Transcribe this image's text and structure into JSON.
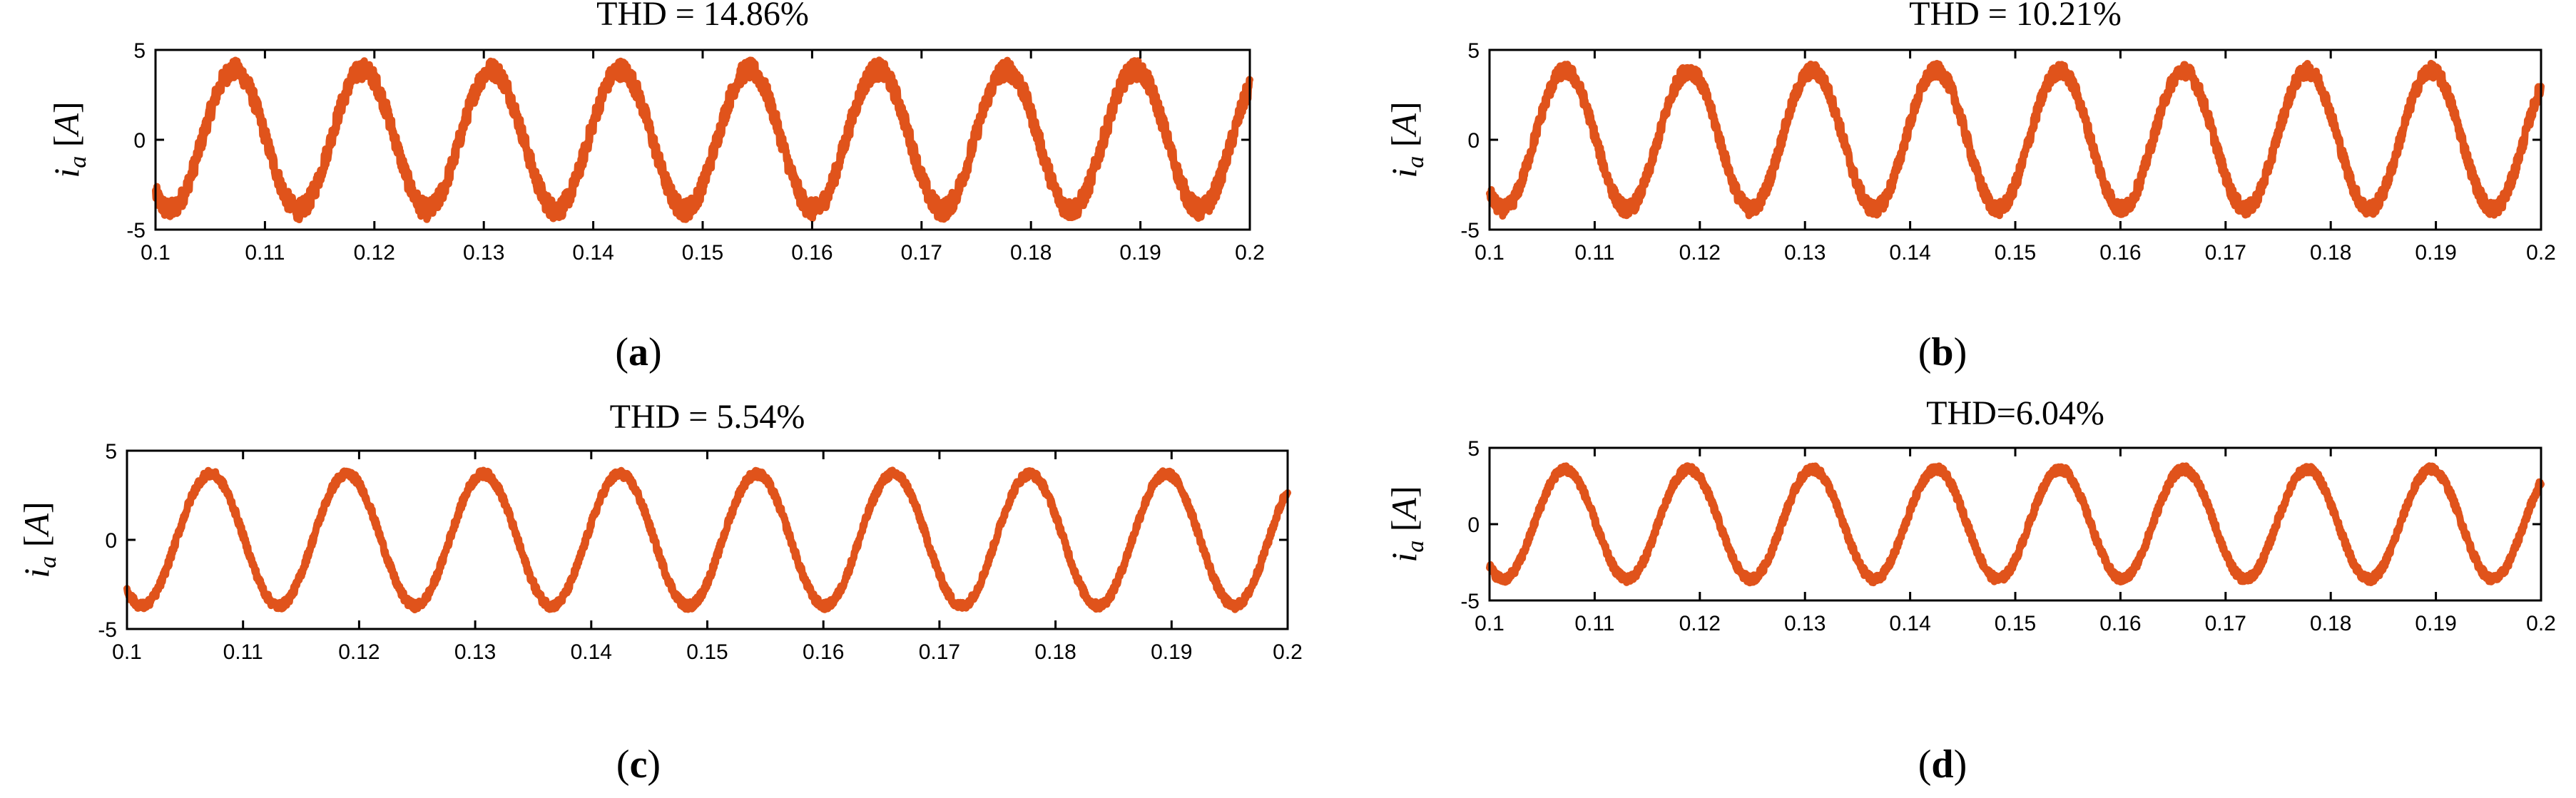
{
  "chart_data": [
    {
      "panel": "(a)",
      "type": "line",
      "title": "THD = 14.86%",
      "xlabel": "",
      "ylabel": "i_a [A]",
      "xlim": [
        0.1,
        0.2
      ],
      "ylim": [
        -5,
        5
      ],
      "x_ticks": [
        "0.1",
        "0.11",
        "0.12",
        "0.13",
        "0.14",
        "0.15",
        "0.16",
        "0.17",
        "0.18",
        "0.19",
        "0.2"
      ],
      "y_ticks": [
        "5",
        "0",
        "-5"
      ],
      "series": [
        {
          "amplitude": 3.9,
          "frequency_hz": 85,
          "ripple": 0.55,
          "phase_deg": -130
        }
      ]
    },
    {
      "panel": "(b)",
      "type": "line",
      "title": "THD = 10.21%",
      "xlabel": "",
      "ylabel": "i_a [A]",
      "xlim": [
        0.1,
        0.2
      ],
      "ylim": [
        -5,
        5
      ],
      "x_ticks": [
        "0.1",
        "0.11",
        "0.12",
        "0.13",
        "0.14",
        "0.15",
        "0.16",
        "0.17",
        "0.18",
        "0.19",
        "0.2"
      ],
      "y_ticks": [
        "5",
        "0",
        "-5"
      ],
      "series": [
        {
          "amplitude": 3.85,
          "frequency_hz": 85,
          "ripple": 0.4,
          "phase_deg": -130
        }
      ]
    },
    {
      "panel": "(c)",
      "type": "line",
      "title": "THD = 5.54%",
      "xlabel": "",
      "ylabel": "i_a [A]",
      "xlim": [
        0.1,
        0.2
      ],
      "ylim": [
        -5,
        5
      ],
      "x_ticks": [
        "0.1",
        "0.11",
        "0.12",
        "0.13",
        "0.14",
        "0.15",
        "0.16",
        "0.17",
        "0.18",
        "0.19",
        "0.2"
      ],
      "y_ticks": [
        "5",
        "0",
        "-5"
      ],
      "series": [
        {
          "amplitude": 3.7,
          "frequency_hz": 85,
          "ripple": 0.22,
          "phase_deg": -130
        }
      ]
    },
    {
      "panel": "(d)",
      "type": "line",
      "title": "THD=6.04%",
      "xlabel": "",
      "ylabel": "i_a [A]",
      "xlim": [
        0.1,
        0.2
      ],
      "ylim": [
        -5,
        5
      ],
      "x_ticks": [
        "0.1",
        "0.11",
        "0.12",
        "0.13",
        "0.14",
        "0.15",
        "0.16",
        "0.17",
        "0.18",
        "0.19",
        "0.2"
      ],
      "y_ticks": [
        "5",
        "0",
        "-5"
      ],
      "series": [
        {
          "amplitude": 3.6,
          "frequency_hz": 85,
          "ripple": 0.25,
          "phase_deg": -130
        }
      ]
    }
  ],
  "colors": {
    "trace": "#e0531b",
    "axes": "#000000",
    "background": "#ffffff"
  },
  "panels": [
    {
      "label_letter": "a"
    },
    {
      "label_letter": "b"
    },
    {
      "label_letter": "c"
    },
    {
      "label_letter": "d"
    }
  ]
}
